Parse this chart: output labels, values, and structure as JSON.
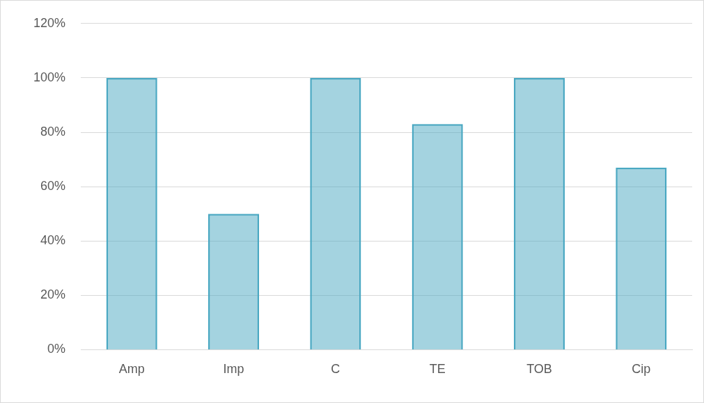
{
  "chart_data": {
    "type": "bar",
    "categories": [
      "Amp",
      "Imp",
      "C",
      "TE",
      "TOB",
      "Cip"
    ],
    "values": [
      100,
      50,
      100,
      83,
      100,
      67
    ],
    "color": "#4aa8c2",
    "ylim": [
      0,
      120
    ],
    "yticks": [
      {
        "value": 0,
        "label": "0%"
      },
      {
        "value": 20,
        "label": "20%"
      },
      {
        "value": 40,
        "label": "40%"
      },
      {
        "value": 60,
        "label": "60%"
      },
      {
        "value": 80,
        "label": "80%"
      },
      {
        "value": 100,
        "label": "100%"
      },
      {
        "value": 120,
        "label": "120%"
      }
    ],
    "grid": "y",
    "legend": false
  }
}
